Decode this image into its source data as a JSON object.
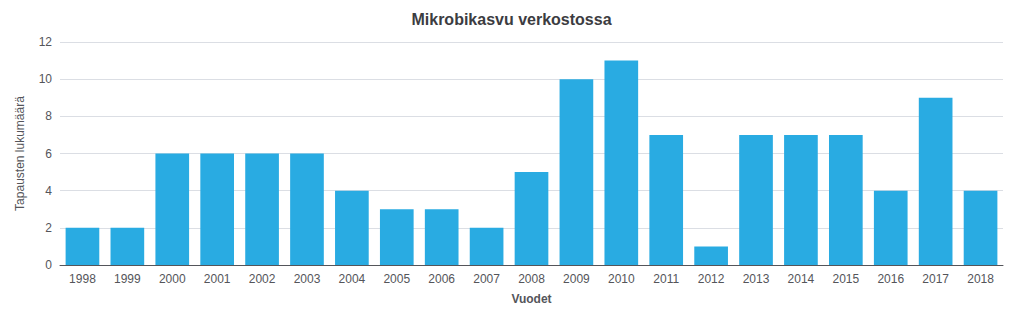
{
  "chart_data": {
    "type": "bar",
    "title": "Mikrobikasvu verkostossa",
    "xlabel": "Vuodet",
    "ylabel": "Tapausten lukumäärä",
    "categories": [
      "1998",
      "1999",
      "2000",
      "2001",
      "2002",
      "2003",
      "2004",
      "2005",
      "2006",
      "2007",
      "2008",
      "2009",
      "2010",
      "2011",
      "2012",
      "2013",
      "2014",
      "2015",
      "2016",
      "2017",
      "2018"
    ],
    "values": [
      2,
      2,
      6,
      6,
      6,
      6,
      4,
      3,
      3,
      2,
      5,
      10,
      11,
      7,
      1,
      7,
      7,
      7,
      4,
      9,
      4
    ],
    "color": "#29ABE2",
    "ylim": [
      0,
      12
    ],
    "yticks": [
      0,
      2,
      4,
      6,
      8,
      10,
      12
    ],
    "grid": true
  }
}
